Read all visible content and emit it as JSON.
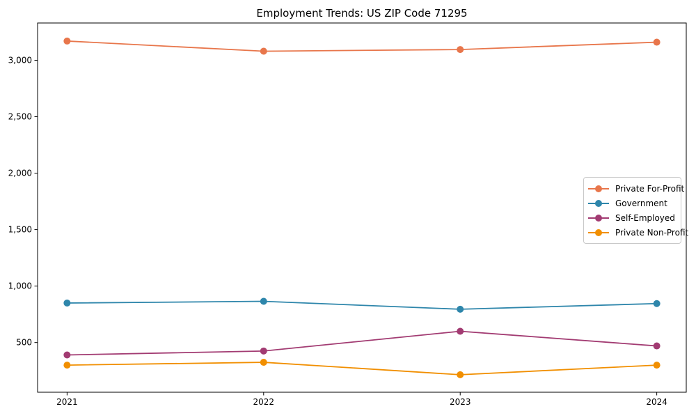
{
  "title": "Employment Trends: US ZIP Code 71295",
  "chart_data": {
    "type": "line",
    "title": "Employment Trends: US ZIP Code 71295",
    "xlabel": "",
    "ylabel": "",
    "x": [
      2021,
      2022,
      2023,
      2024
    ],
    "x_tick_labels": [
      "2021",
      "2022",
      "2023",
      "2024"
    ],
    "y_ticks": [
      500,
      1000,
      1500,
      2000,
      2500,
      3000
    ],
    "y_tick_labels": [
      "500",
      "1,000",
      "1,500",
      "2,000",
      "2,500",
      "3,000"
    ],
    "xlim": [
      2020.85,
      2024.15
    ],
    "ylim": [
      60,
      3330
    ],
    "grid": false,
    "legend_position": "center-right",
    "series": [
      {
        "name": "Private For-Profit",
        "color": "#e8764b",
        "values": [
          3170,
          3080,
          3095,
          3160
        ]
      },
      {
        "name": "Government",
        "color": "#2e86ab",
        "values": [
          850,
          865,
          795,
          845
        ]
      },
      {
        "name": "Self-Employed",
        "color": "#a23b72",
        "values": [
          390,
          425,
          600,
          470
        ]
      },
      {
        "name": "Private Non-Profit",
        "color": "#f18f01",
        "values": [
          300,
          325,
          215,
          300
        ]
      }
    ]
  },
  "style": {
    "axis_color": "#000000",
    "background": "#ffffff",
    "tick_label_color": "#000000"
  }
}
